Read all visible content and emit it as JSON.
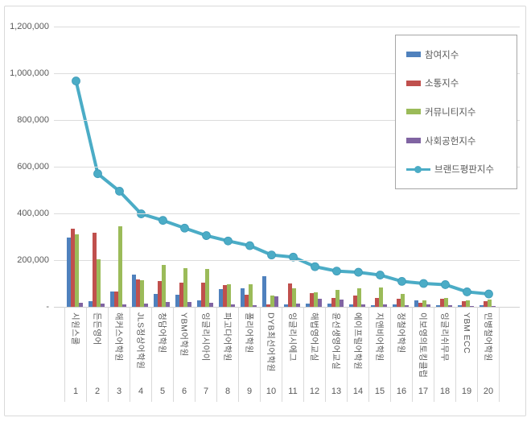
{
  "chart_data": {
    "type": "bar",
    "combo": "grouped bars + line overlay",
    "title": "",
    "categories": [
      "시원스쿨",
      "든든영어",
      "해커스어학원",
      "JLS정상어학원",
      "청담어학원",
      "YBM어학원",
      "잉글리시아이",
      "파고다어학원",
      "폴리어학원",
      "DYB최선어학원",
      "잉글리시에그",
      "해법영어교실",
      "윤선생영어교실",
      "에이프릴어학원",
      "지앤비어학원",
      "정철어학원",
      "이보영의토킹클럽",
      "잉글리쉬무무",
      "YBM ECC",
      "민병철어학원"
    ],
    "ranks": [
      "1",
      "2",
      "3",
      "4",
      "5",
      "6",
      "7",
      "8",
      "9",
      "10",
      "11",
      "12",
      "13",
      "14",
      "15",
      "16",
      "17",
      "18",
      "19",
      "20"
    ],
    "series": [
      {
        "name": "참여지수",
        "key": "participation-index",
        "type": "bar",
        "color": "#4F81BD",
        "values": [
          295000,
          25000,
          67000,
          138000,
          55000,
          50000,
          26000,
          75000,
          78000,
          130000,
          9000,
          14000,
          14000,
          9000,
          6000,
          9000,
          29000,
          6000,
          6000,
          6000
        ]
      },
      {
        "name": "소통지수",
        "key": "communication-index",
        "type": "bar",
        "color": "#C0504D",
        "values": [
          335000,
          318000,
          67000,
          118000,
          110000,
          105000,
          105000,
          92000,
          52000,
          10000,
          101000,
          60000,
          37000,
          48000,
          37000,
          35000,
          17000,
          35000,
          23000,
          23000
        ]
      },
      {
        "name": "커뮤니티지수",
        "key": "community-index",
        "type": "bar",
        "color": "#9BBB59",
        "values": [
          310000,
          205000,
          345000,
          114000,
          180000,
          165000,
          163000,
          98000,
          98000,
          48000,
          80000,
          63000,
          72000,
          80000,
          83000,
          55000,
          29000,
          37000,
          29000,
          31000
        ]
      },
      {
        "name": "사회공헌지수",
        "key": "social-contribution-index",
        "type": "bar",
        "color": "#8064A2",
        "values": [
          18000,
          15000,
          12000,
          15000,
          22000,
          22000,
          17000,
          11000,
          8000,
          45000,
          14000,
          35000,
          31000,
          9000,
          9000,
          6000,
          9000,
          8000,
          5000,
          5000
        ]
      },
      {
        "name": "브랜드평판지수",
        "key": "brand-reputation-index",
        "type": "line",
        "color": "#4BACC6",
        "values": [
          967000,
          570000,
          495000,
          398000,
          370000,
          337000,
          305000,
          282000,
          262000,
          222000,
          213000,
          172000,
          153000,
          148000,
          136000,
          109000,
          100000,
          95000,
          64000,
          55000
        ]
      }
    ],
    "y_axis": {
      "min": 0,
      "max": 1200000,
      "step": 200000,
      "tick_labels": [
        "1,200,000",
        "1,000,000",
        "800,000",
        "600,000",
        "400,000",
        "200,000",
        "-"
      ]
    },
    "x_axis": {
      "levels": [
        "academy-name",
        "rank-number"
      ]
    },
    "legend_position": "top-right",
    "grid": true,
    "colors": {
      "gridline": "#dcdcdc",
      "axis_text": "#595959",
      "frame_border": "#d9d9d9",
      "legend_border": "#a6a6a6",
      "background": "#ffffff"
    }
  }
}
